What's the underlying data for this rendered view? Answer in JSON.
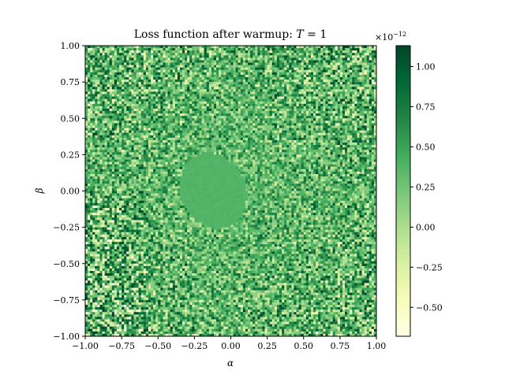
{
  "chart_data": {
    "type": "heatmap",
    "title": "Loss function after warmup: T = 1",
    "title_parts": {
      "text": "Loss function after warmup: ",
      "var": "T",
      "rest": " = 1"
    },
    "xlabel": "α",
    "ylabel": "β",
    "xlim": [
      -1.0,
      1.0
    ],
    "ylim": [
      -1.0,
      1.0
    ],
    "x_ticks": [
      -1.0,
      -0.75,
      -0.5,
      -0.25,
      0.0,
      0.25,
      0.5,
      0.75,
      1.0
    ],
    "x_tick_labels": [
      "−1.00",
      "−0.75",
      "−0.50",
      "−0.25",
      "0.00",
      "0.25",
      "0.50",
      "0.75",
      "1.00"
    ],
    "y_ticks": [
      1.0,
      0.75,
      0.5,
      0.25,
      0.0,
      -0.25,
      -0.5,
      -0.75,
      -1.0
    ],
    "y_tick_labels": [
      "1.00",
      "0.75",
      "0.50",
      "0.25",
      "0.00",
      "−0.25",
      "−0.50",
      "−0.75",
      "−1.00"
    ],
    "colormap": "YlGn",
    "colormap_stops": [
      "#ffffe5",
      "#f7fcb9",
      "#d9f0a3",
      "#addd8e",
      "#78c679",
      "#41ab5d",
      "#238443",
      "#006837",
      "#004529"
    ],
    "colorbar": {
      "range": [
        -0.68,
        1.13
      ],
      "ticks": [
        1.0,
        0.75,
        0.5,
        0.25,
        0.0,
        -0.25,
        -0.5
      ],
      "tick_labels": [
        "1.00",
        "0.75",
        "0.50",
        "0.25",
        "0.00",
        "−0.25",
        "−0.50"
      ],
      "scale_prefix": "×10",
      "scale_exponent": "−12"
    },
    "grid_resolution": 120,
    "central_plateau": {
      "alpha_center": -0.12,
      "beta_center": 0.0,
      "value": 0.38
    },
    "typical_value_range": [
      -0.3,
      0.9
    ]
  }
}
